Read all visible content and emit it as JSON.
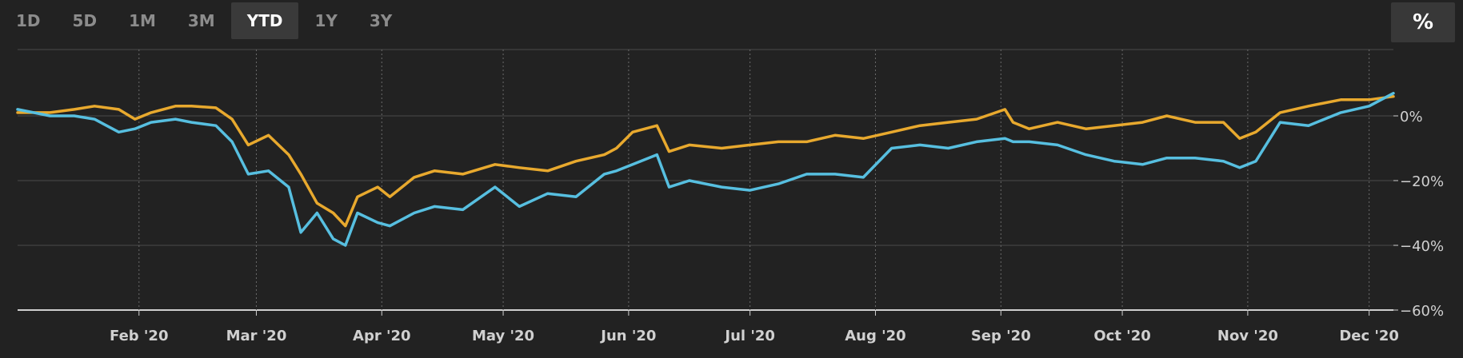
{
  "toolbar": {
    "ranges": [
      "1D",
      "5D",
      "1M",
      "3M",
      "YTD",
      "1Y",
      "3Y"
    ],
    "active": "YTD",
    "percent_label": "%"
  },
  "colors": {
    "background": "#222222",
    "series_a": "#e8a92e",
    "series_b": "#57bfe0",
    "grid": "#4a4a4a",
    "vgrid": "#6a6a6a",
    "axis": "#cfcfcf"
  },
  "chart_data": {
    "type": "line",
    "x_start": "2020-01-02",
    "x_end": "2020-12-07",
    "x_tick_labels": [
      "Feb '20",
      "Mar '20",
      "Apr '20",
      "May '20",
      "Jun '20",
      "Jul '20",
      "Aug '20",
      "Sep '20",
      "Oct '20",
      "Nov '20",
      "Dec '20"
    ],
    "x_tick_dates": [
      "2020-02-01",
      "2020-03-01",
      "2020-04-01",
      "2020-05-01",
      "2020-06-01",
      "2020-07-01",
      "2020-08-01",
      "2020-09-01",
      "2020-10-01",
      "2020-11-01",
      "2020-12-01"
    ],
    "y_ticks": [
      0,
      -20,
      -40,
      -60
    ],
    "y_tick_labels": [
      "0%",
      "−20%",
      "−40%",
      "−60%"
    ],
    "ylim": [
      -60,
      20
    ],
    "grid": true,
    "series": [
      {
        "color": "#e8a92e",
        "points": [
          [
            "2020-01-02",
            1
          ],
          [
            "2020-01-10",
            1
          ],
          [
            "2020-01-16",
            2
          ],
          [
            "2020-01-21",
            3
          ],
          [
            "2020-01-27",
            2
          ],
          [
            "2020-01-31",
            -1
          ],
          [
            "2020-02-04",
            1
          ],
          [
            "2020-02-10",
            3
          ],
          [
            "2020-02-14",
            3
          ],
          [
            "2020-02-20",
            2.5
          ],
          [
            "2020-02-24",
            -1
          ],
          [
            "2020-02-28",
            -9
          ],
          [
            "2020-03-04",
            -6
          ],
          [
            "2020-03-09",
            -12
          ],
          [
            "2020-03-12",
            -18
          ],
          [
            "2020-03-16",
            -27
          ],
          [
            "2020-03-20",
            -30
          ],
          [
            "2020-03-23",
            -34
          ],
          [
            "2020-03-26",
            -25
          ],
          [
            "2020-03-31",
            -22
          ],
          [
            "2020-04-03",
            -25
          ],
          [
            "2020-04-09",
            -19
          ],
          [
            "2020-04-14",
            -17
          ],
          [
            "2020-04-21",
            -18
          ],
          [
            "2020-04-29",
            -15
          ],
          [
            "2020-05-05",
            -16
          ],
          [
            "2020-05-12",
            -17
          ],
          [
            "2020-05-19",
            -14
          ],
          [
            "2020-05-26",
            -12
          ],
          [
            "2020-05-29",
            -10
          ],
          [
            "2020-06-02",
            -5
          ],
          [
            "2020-06-08",
            -3
          ],
          [
            "2020-06-11",
            -11
          ],
          [
            "2020-06-16",
            -9
          ],
          [
            "2020-06-24",
            -10
          ],
          [
            "2020-07-01",
            -9
          ],
          [
            "2020-07-08",
            -8
          ],
          [
            "2020-07-15",
            -8
          ],
          [
            "2020-07-22",
            -6
          ],
          [
            "2020-07-29",
            -7
          ],
          [
            "2020-08-05",
            -5
          ],
          [
            "2020-08-12",
            -3
          ],
          [
            "2020-08-19",
            -2
          ],
          [
            "2020-08-26",
            -1
          ],
          [
            "2020-09-02",
            2
          ],
          [
            "2020-09-04",
            -2
          ],
          [
            "2020-09-08",
            -4
          ],
          [
            "2020-09-15",
            -2
          ],
          [
            "2020-09-22",
            -4
          ],
          [
            "2020-09-29",
            -3
          ],
          [
            "2020-10-06",
            -2
          ],
          [
            "2020-10-12",
            0
          ],
          [
            "2020-10-19",
            -2
          ],
          [
            "2020-10-26",
            -2
          ],
          [
            "2020-10-30",
            -7
          ],
          [
            "2020-11-03",
            -5
          ],
          [
            "2020-11-09",
            1
          ],
          [
            "2020-11-16",
            3
          ],
          [
            "2020-11-24",
            5
          ],
          [
            "2020-12-01",
            5
          ],
          [
            "2020-12-07",
            6
          ]
        ]
      },
      {
        "color": "#57bfe0",
        "points": [
          [
            "2020-01-02",
            2
          ],
          [
            "2020-01-10",
            0
          ],
          [
            "2020-01-16",
            0
          ],
          [
            "2020-01-21",
            -1
          ],
          [
            "2020-01-27",
            -5
          ],
          [
            "2020-01-31",
            -4
          ],
          [
            "2020-02-04",
            -2
          ],
          [
            "2020-02-10",
            -1
          ],
          [
            "2020-02-14",
            -2
          ],
          [
            "2020-02-20",
            -3
          ],
          [
            "2020-02-24",
            -8
          ],
          [
            "2020-02-28",
            -18
          ],
          [
            "2020-03-04",
            -17
          ],
          [
            "2020-03-09",
            -22
          ],
          [
            "2020-03-12",
            -36
          ],
          [
            "2020-03-16",
            -30
          ],
          [
            "2020-03-20",
            -38
          ],
          [
            "2020-03-23",
            -40
          ],
          [
            "2020-03-26",
            -30
          ],
          [
            "2020-03-31",
            -33
          ],
          [
            "2020-04-03",
            -34
          ],
          [
            "2020-04-09",
            -30
          ],
          [
            "2020-04-14",
            -28
          ],
          [
            "2020-04-21",
            -29
          ],
          [
            "2020-04-29",
            -22
          ],
          [
            "2020-05-05",
            -28
          ],
          [
            "2020-05-12",
            -24
          ],
          [
            "2020-05-19",
            -25
          ],
          [
            "2020-05-26",
            -18
          ],
          [
            "2020-05-29",
            -17
          ],
          [
            "2020-06-02",
            -15
          ],
          [
            "2020-06-08",
            -12
          ],
          [
            "2020-06-11",
            -22
          ],
          [
            "2020-06-16",
            -20
          ],
          [
            "2020-06-24",
            -22
          ],
          [
            "2020-07-01",
            -23
          ],
          [
            "2020-07-08",
            -21
          ],
          [
            "2020-07-15",
            -18
          ],
          [
            "2020-07-22",
            -18
          ],
          [
            "2020-07-29",
            -19
          ],
          [
            "2020-08-05",
            -10
          ],
          [
            "2020-08-12",
            -9
          ],
          [
            "2020-08-19",
            -10
          ],
          [
            "2020-08-26",
            -8
          ],
          [
            "2020-09-02",
            -7
          ],
          [
            "2020-09-04",
            -8
          ],
          [
            "2020-09-08",
            -8
          ],
          [
            "2020-09-15",
            -9
          ],
          [
            "2020-09-22",
            -12
          ],
          [
            "2020-09-29",
            -14
          ],
          [
            "2020-10-06",
            -15
          ],
          [
            "2020-10-12",
            -13
          ],
          [
            "2020-10-19",
            -13
          ],
          [
            "2020-10-26",
            -14
          ],
          [
            "2020-10-30",
            -16
          ],
          [
            "2020-11-03",
            -14
          ],
          [
            "2020-11-09",
            -2
          ],
          [
            "2020-11-16",
            -3
          ],
          [
            "2020-11-24",
            1
          ],
          [
            "2020-12-01",
            3
          ],
          [
            "2020-12-07",
            7
          ]
        ]
      }
    ]
  }
}
